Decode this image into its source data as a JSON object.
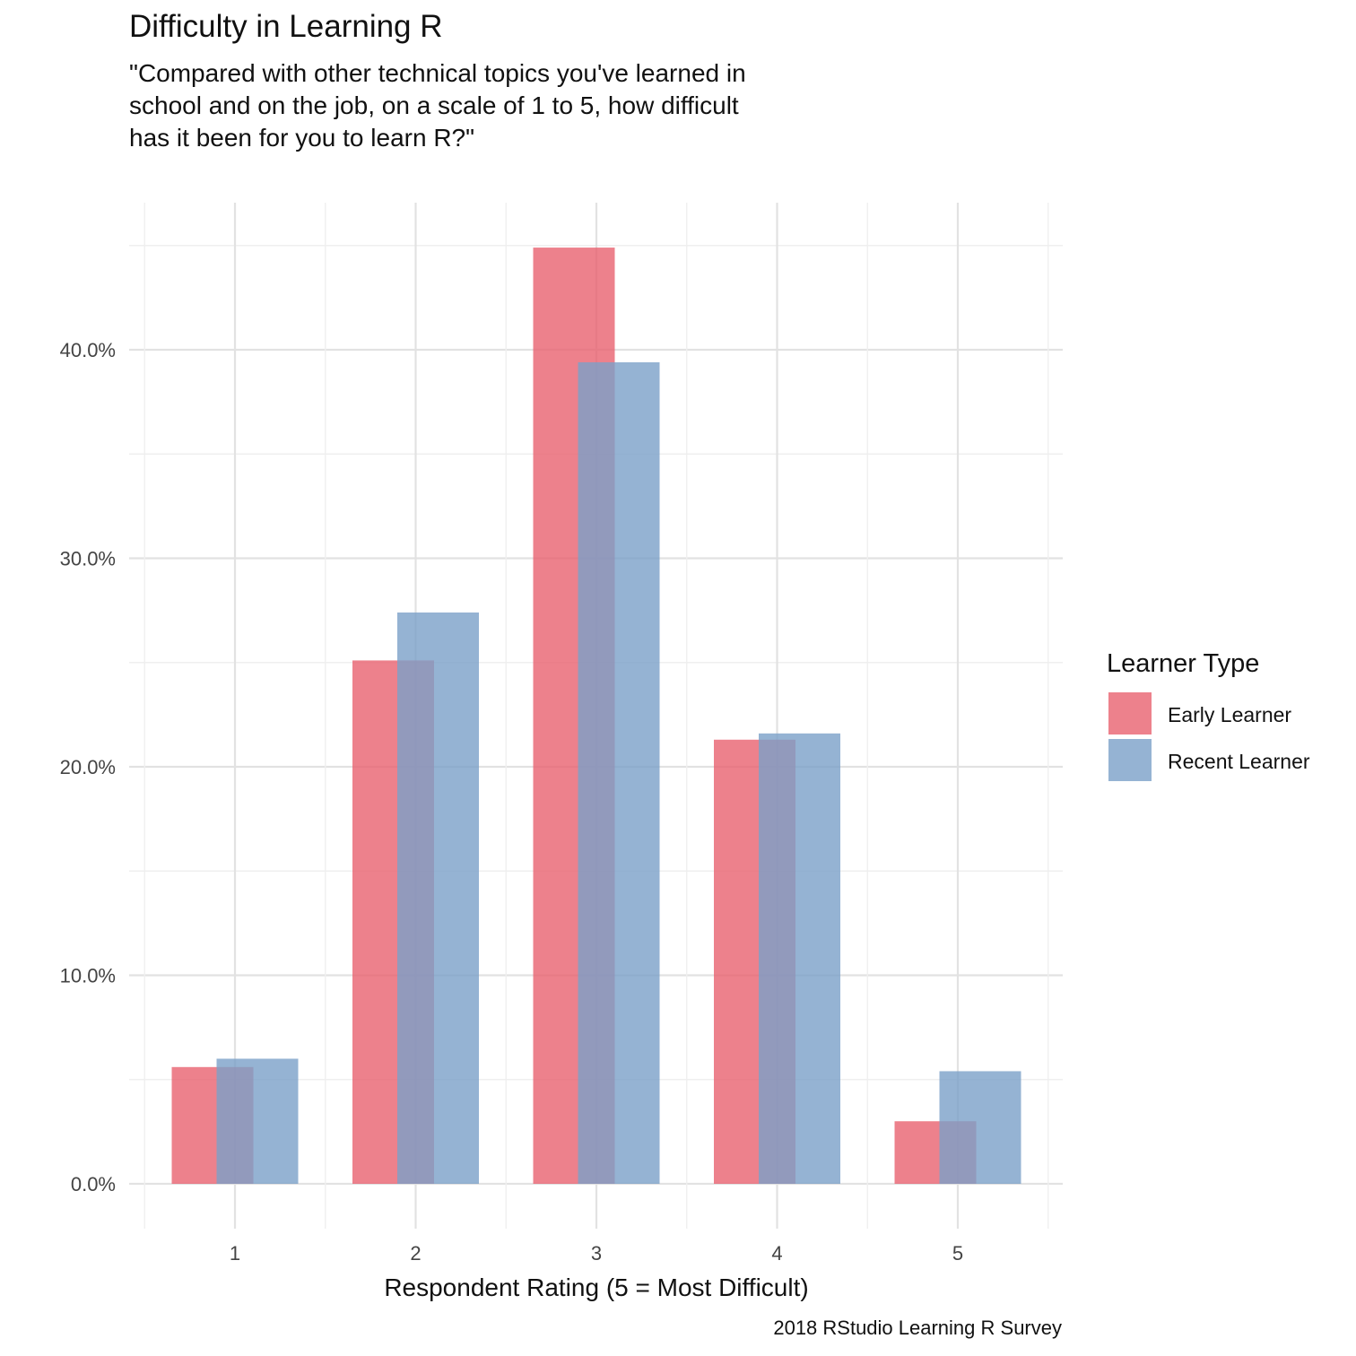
{
  "chart_data": {
    "type": "bar",
    "title": "Difficulty in Learning R",
    "subtitle": "\"Compared with other technical topics you've learned in school and on the job, on a scale of 1 to 5, how difficult has it been for you to learn R?\"",
    "xlabel": "Respondent Rating (5 = Most Difficult)",
    "ylabel": "",
    "caption": "2018 RStudio Learning R Survey",
    "categories": [
      "1",
      "2",
      "3",
      "4",
      "5"
    ],
    "ylim": [
      0,
      0.46
    ],
    "y_ticks": [
      0,
      0.1,
      0.2,
      0.3,
      0.4
    ],
    "y_tick_labels": [
      "0.0%",
      "10.0%",
      "20.0%",
      "30.0%",
      "40.0%"
    ],
    "grid": true,
    "legend": {
      "title": "Learner Type",
      "position": "right"
    },
    "series": [
      {
        "name": "Early Learner",
        "color": "#E8616F",
        "values": [
          0.056,
          0.251,
          0.449,
          0.213,
          0.03
        ]
      },
      {
        "name": "Recent Learner",
        "color": "#7AA0C8",
        "values": [
          0.06,
          0.274,
          0.394,
          0.216,
          0.054
        ]
      }
    ]
  }
}
